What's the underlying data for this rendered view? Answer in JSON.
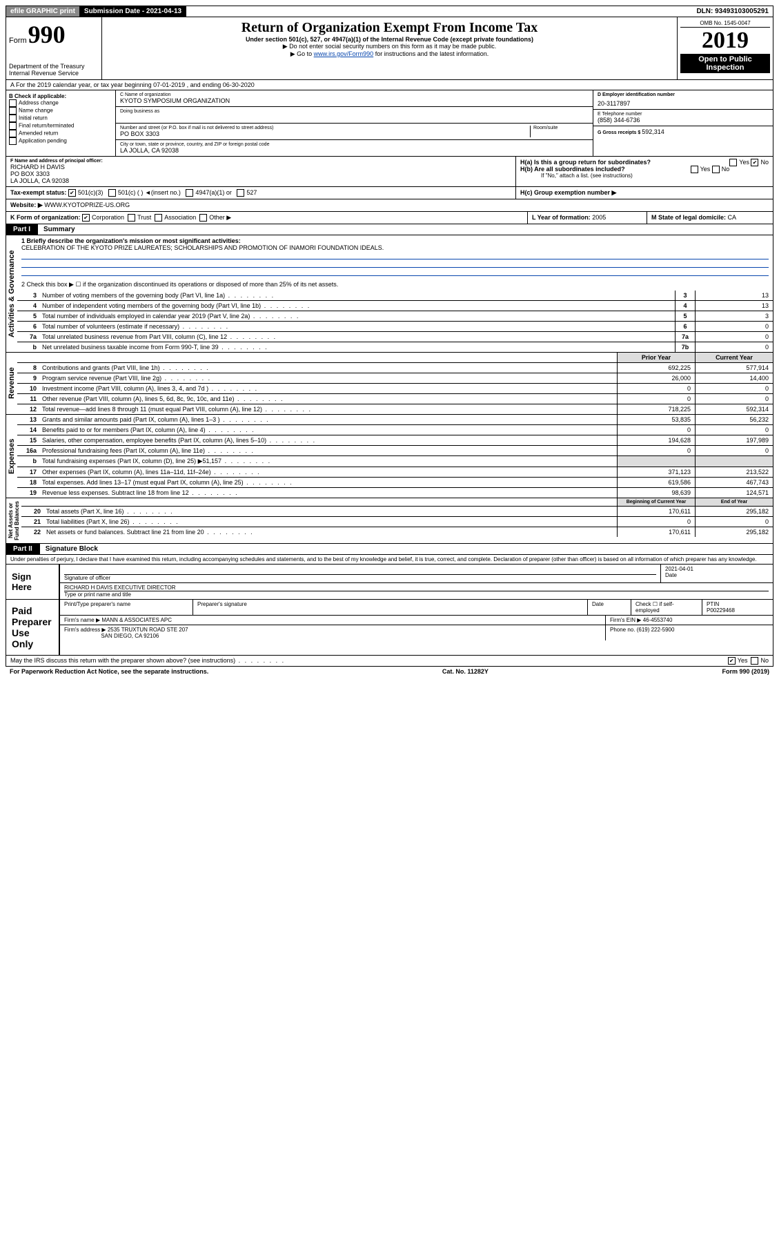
{
  "top": {
    "efile": "efile GRAPHIC print",
    "subdate_label": "Submission Date - ",
    "subdate": "2021-04-13",
    "dln_label": "DLN: ",
    "dln": "93493103005291"
  },
  "hdr": {
    "form_word": "Form",
    "form_num": "990",
    "dept": "Department of the Treasury\nInternal Revenue Service",
    "title": "Return of Organization Exempt From Income Tax",
    "sub": "Under section 501(c), 527, or 4947(a)(1) of the Internal Revenue Code (except private foundations)",
    "i1": "▶ Do not enter social security numbers on this form as it may be made public.",
    "i2a": "▶ Go to ",
    "i2b": "www.irs.gov/Form990",
    "i2c": " for instructions and the latest information.",
    "omb_label": "OMB No. 1545-0047",
    "year": "2019",
    "badge": "Open to Public Inspection"
  },
  "rowA": "A For the 2019 calendar year, or tax year beginning 07-01-2019    , and ending 06-30-2020",
  "B": {
    "label": "B Check if applicable:",
    "opts": [
      "Address change",
      "Name change",
      "Initial return",
      "Final return/terminated",
      "Amended return",
      "Application pending"
    ]
  },
  "C": {
    "name_label": "C Name of organization",
    "name": "KYOTO SYMPOSIUM ORGANIZATION",
    "dba_label": "Doing business as",
    "addr_label": "Number and street (or P.O. box if mail is not delivered to street address)",
    "room_label": "Room/suite",
    "addr": "PO BOX 3303",
    "city_label": "City or town, state or province, country, and ZIP or foreign postal code",
    "city": "LA JOLLA, CA  92038"
  },
  "D": {
    "label": "D Employer identification number",
    "val": "20-3117897"
  },
  "E": {
    "label": "E Telephone number",
    "val": "(858) 344-6736"
  },
  "G": {
    "label": "G Gross receipts $ ",
    "val": "592,314"
  },
  "F": {
    "label": "F  Name and address of principal officer:",
    "name": "RICHARD H DAVIS",
    "addr1": "PO BOX 3303",
    "addr2": "LA JOLLA, CA  92038"
  },
  "H": {
    "a": "H(a)  Is this a group return for subordinates?",
    "a_yes": "Yes",
    "a_no": "No",
    "b": "H(b)  Are all subordinates included?",
    "b_yes": "Yes",
    "b_no": "No",
    "b_note": "If \"No,\" attach a list. (see instructions)",
    "c": "H(c)  Group exemption number ▶"
  },
  "I": {
    "label": "Tax-exempt status:",
    "o1": "501(c)(3)",
    "o2": "501(c) (  ) ◄(insert no.)",
    "o3": "4947(a)(1) or",
    "o4": "527"
  },
  "J": {
    "label": "Website: ▶ ",
    "val": "WWW.KYOTOPRIZE-US.ORG"
  },
  "K": {
    "label": "K Form of organization:",
    "o1": "Corporation",
    "o2": "Trust",
    "o3": "Association",
    "o4": "Other ▶"
  },
  "L": {
    "label": "L Year of formation: ",
    "val": "2005"
  },
  "M": {
    "label": "M State of legal domicile: ",
    "val": "CA"
  },
  "part1": {
    "tab": "Part I",
    "title": "Summary"
  },
  "summary": {
    "s1_label": "1  Briefly describe the organization's mission or most significant activities:",
    "s1_text": "CELEBRATION OF THE KYOTO PRIZE LAUREATES; SCHOLARSHIPS AND PROMOTION OF INAMORI FOUNDATION IDEALS.",
    "s2": "2   Check this box ▶ ☐  if the organization discontinued its operations or disposed of more than 25% of its net assets.",
    "rows_gov": [
      {
        "n": "3",
        "t": "Number of voting members of the governing body (Part VI, line 1a)",
        "b": "3",
        "v": "13"
      },
      {
        "n": "4",
        "t": "Number of independent voting members of the governing body (Part VI, line 1b)",
        "b": "4",
        "v": "13"
      },
      {
        "n": "5",
        "t": "Total number of individuals employed in calendar year 2019 (Part V, line 2a)",
        "b": "5",
        "v": "3"
      },
      {
        "n": "6",
        "t": "Total number of volunteers (estimate if necessary)",
        "b": "6",
        "v": "0"
      },
      {
        "n": "7a",
        "t": "Total unrelated business revenue from Part VIII, column (C), line 12",
        "b": "7a",
        "v": "0"
      },
      {
        "n": "b",
        "t": "Net unrelated business taxable income from Form 990-T, line 39",
        "b": "7b",
        "v": "0"
      }
    ],
    "col_h1": "Prior Year",
    "col_h2": "Current Year",
    "rev": [
      {
        "n": "8",
        "t": "Contributions and grants (Part VIII, line 1h)",
        "p": "692,225",
        "c": "577,914"
      },
      {
        "n": "9",
        "t": "Program service revenue (Part VIII, line 2g)",
        "p": "26,000",
        "c": "14,400"
      },
      {
        "n": "10",
        "t": "Investment income (Part VIII, column (A), lines 3, 4, and 7d )",
        "p": "0",
        "c": "0"
      },
      {
        "n": "11",
        "t": "Other revenue (Part VIII, column (A), lines 5, 6d, 8c, 9c, 10c, and 11e)",
        "p": "0",
        "c": "0"
      },
      {
        "n": "12",
        "t": "Total revenue—add lines 8 through 11 (must equal Part VIII, column (A), line 12)",
        "p": "718,225",
        "c": "592,314"
      }
    ],
    "exp": [
      {
        "n": "13",
        "t": "Grants and similar amounts paid (Part IX, column (A), lines 1–3 )",
        "p": "53,835",
        "c": "56,232"
      },
      {
        "n": "14",
        "t": "Benefits paid to or for members (Part IX, column (A), line 4)",
        "p": "0",
        "c": "0"
      },
      {
        "n": "15",
        "t": "Salaries, other compensation, employee benefits (Part IX, column (A), lines 5–10)",
        "p": "194,628",
        "c": "197,989"
      },
      {
        "n": "16a",
        "t": "Professional fundraising fees (Part IX, column (A), line 11e)",
        "p": "0",
        "c": "0"
      },
      {
        "n": "b",
        "t": "Total fundraising expenses (Part IX, column (D), line 25) ▶51,157",
        "p": "",
        "c": ""
      },
      {
        "n": "17",
        "t": "Other expenses (Part IX, column (A), lines 11a–11d, 11f–24e)",
        "p": "371,123",
        "c": "213,522"
      },
      {
        "n": "18",
        "t": "Total expenses. Add lines 13–17 (must equal Part IX, column (A), line 25)",
        "p": "619,586",
        "c": "467,743"
      },
      {
        "n": "19",
        "t": "Revenue less expenses. Subtract line 18 from line 12",
        "p": "98,639",
        "c": "124,571"
      }
    ],
    "na_h1": "Beginning of Current Year",
    "na_h2": "End of Year",
    "na": [
      {
        "n": "20",
        "t": "Total assets (Part X, line 16)",
        "p": "170,611",
        "c": "295,182"
      },
      {
        "n": "21",
        "t": "Total liabilities (Part X, line 26)",
        "p": "0",
        "c": "0"
      },
      {
        "n": "22",
        "t": "Net assets or fund balances. Subtract line 21 from line 20",
        "p": "170,611",
        "c": "295,182"
      }
    ]
  },
  "vlabels": {
    "gov": "Activities & Governance",
    "rev": "Revenue",
    "exp": "Expenses",
    "na": "Net Assets or\nFund Balances"
  },
  "part2": {
    "tab": "Part II",
    "title": "Signature Block"
  },
  "sig": {
    "jurat": "Under penalties of perjury, I declare that I have examined this return, including accompanying schedules and statements, and to the best of my knowledge and belief, it is true, correct, and complete. Declaration of preparer (other than officer) is based on all information of which preparer has any knowledge.",
    "sign_here": "Sign Here",
    "sig_officer": "Signature of officer",
    "date_label": "Date",
    "date": "2021-04-01",
    "name_title": "RICHARD H DAVIS EXECUTIVE DIRECTOR",
    "name_title_label": "Type or print name and title",
    "paid": "Paid Preparer Use Only",
    "pp_name_label": "Print/Type preparer's name",
    "pp_sig_label": "Preparer's signature",
    "pp_date_label": "Date",
    "self_emp": "Check ☐ if self-employed",
    "ptin_label": "PTIN",
    "ptin": "P00229468",
    "firm_name_label": "Firm's name    ▶",
    "firm_name": "MANN & ASSOCIATES APC",
    "firm_ein_label": "Firm's EIN ▶",
    "firm_ein": "46-4553740",
    "firm_addr_label": "Firm's address ▶",
    "firm_addr1": "2535 TRUXTUN ROAD STE 207",
    "firm_addr2": "SAN DIEGO, CA  92106",
    "phone_label": "Phone no. ",
    "phone": "(619) 222-5900"
  },
  "footer": {
    "discuss": "May the IRS discuss this return with the preparer shown above? (see instructions)",
    "yes": "Yes",
    "no": "No",
    "pra": "For Paperwork Reduction Act Notice, see the separate instructions.",
    "cat": "Cat. No. 11282Y",
    "form": "Form 990 (2019)"
  }
}
